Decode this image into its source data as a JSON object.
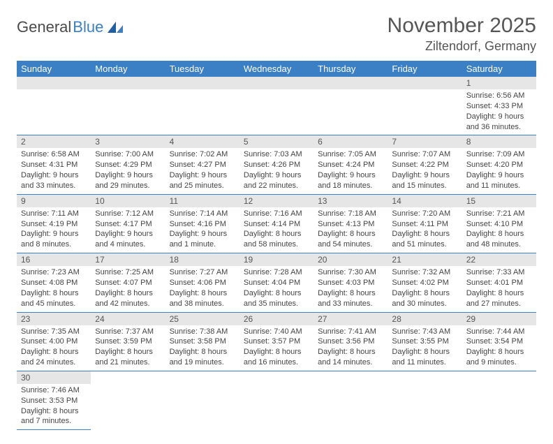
{
  "logo": {
    "part1": "General",
    "part2": "Blue"
  },
  "title": "November 2025",
  "location": "Ziltendorf, Germany",
  "colors": {
    "header_bg": "#3b7fc4",
    "header_text": "#ffffff",
    "daynum_bg": "#e6e6e6",
    "border": "#3b7fc4",
    "text": "#444444",
    "background": "#ffffff"
  },
  "day_headers": [
    "Sunday",
    "Monday",
    "Tuesday",
    "Wednesday",
    "Thursday",
    "Friday",
    "Saturday"
  ],
  "weeks": [
    [
      null,
      null,
      null,
      null,
      null,
      null,
      {
        "n": "1",
        "sr": "Sunrise: 6:56 AM",
        "ss": "Sunset: 4:33 PM",
        "dl": "Daylight: 9 hours and 36 minutes."
      }
    ],
    [
      {
        "n": "2",
        "sr": "Sunrise: 6:58 AM",
        "ss": "Sunset: 4:31 PM",
        "dl": "Daylight: 9 hours and 33 minutes."
      },
      {
        "n": "3",
        "sr": "Sunrise: 7:00 AM",
        "ss": "Sunset: 4:29 PM",
        "dl": "Daylight: 9 hours and 29 minutes."
      },
      {
        "n": "4",
        "sr": "Sunrise: 7:02 AM",
        "ss": "Sunset: 4:27 PM",
        "dl": "Daylight: 9 hours and 25 minutes."
      },
      {
        "n": "5",
        "sr": "Sunrise: 7:03 AM",
        "ss": "Sunset: 4:26 PM",
        "dl": "Daylight: 9 hours and 22 minutes."
      },
      {
        "n": "6",
        "sr": "Sunrise: 7:05 AM",
        "ss": "Sunset: 4:24 PM",
        "dl": "Daylight: 9 hours and 18 minutes."
      },
      {
        "n": "7",
        "sr": "Sunrise: 7:07 AM",
        "ss": "Sunset: 4:22 PM",
        "dl": "Daylight: 9 hours and 15 minutes."
      },
      {
        "n": "8",
        "sr": "Sunrise: 7:09 AM",
        "ss": "Sunset: 4:20 PM",
        "dl": "Daylight: 9 hours and 11 minutes."
      }
    ],
    [
      {
        "n": "9",
        "sr": "Sunrise: 7:11 AM",
        "ss": "Sunset: 4:19 PM",
        "dl": "Daylight: 9 hours and 8 minutes."
      },
      {
        "n": "10",
        "sr": "Sunrise: 7:12 AM",
        "ss": "Sunset: 4:17 PM",
        "dl": "Daylight: 9 hours and 4 minutes."
      },
      {
        "n": "11",
        "sr": "Sunrise: 7:14 AM",
        "ss": "Sunset: 4:16 PM",
        "dl": "Daylight: 9 hours and 1 minute."
      },
      {
        "n": "12",
        "sr": "Sunrise: 7:16 AM",
        "ss": "Sunset: 4:14 PM",
        "dl": "Daylight: 8 hours and 58 minutes."
      },
      {
        "n": "13",
        "sr": "Sunrise: 7:18 AM",
        "ss": "Sunset: 4:13 PM",
        "dl": "Daylight: 8 hours and 54 minutes."
      },
      {
        "n": "14",
        "sr": "Sunrise: 7:20 AM",
        "ss": "Sunset: 4:11 PM",
        "dl": "Daylight: 8 hours and 51 minutes."
      },
      {
        "n": "15",
        "sr": "Sunrise: 7:21 AM",
        "ss": "Sunset: 4:10 PM",
        "dl": "Daylight: 8 hours and 48 minutes."
      }
    ],
    [
      {
        "n": "16",
        "sr": "Sunrise: 7:23 AM",
        "ss": "Sunset: 4:08 PM",
        "dl": "Daylight: 8 hours and 45 minutes."
      },
      {
        "n": "17",
        "sr": "Sunrise: 7:25 AM",
        "ss": "Sunset: 4:07 PM",
        "dl": "Daylight: 8 hours and 42 minutes."
      },
      {
        "n": "18",
        "sr": "Sunrise: 7:27 AM",
        "ss": "Sunset: 4:06 PM",
        "dl": "Daylight: 8 hours and 38 minutes."
      },
      {
        "n": "19",
        "sr": "Sunrise: 7:28 AM",
        "ss": "Sunset: 4:04 PM",
        "dl": "Daylight: 8 hours and 35 minutes."
      },
      {
        "n": "20",
        "sr": "Sunrise: 7:30 AM",
        "ss": "Sunset: 4:03 PM",
        "dl": "Daylight: 8 hours and 33 minutes."
      },
      {
        "n": "21",
        "sr": "Sunrise: 7:32 AM",
        "ss": "Sunset: 4:02 PM",
        "dl": "Daylight: 8 hours and 30 minutes."
      },
      {
        "n": "22",
        "sr": "Sunrise: 7:33 AM",
        "ss": "Sunset: 4:01 PM",
        "dl": "Daylight: 8 hours and 27 minutes."
      }
    ],
    [
      {
        "n": "23",
        "sr": "Sunrise: 7:35 AM",
        "ss": "Sunset: 4:00 PM",
        "dl": "Daylight: 8 hours and 24 minutes."
      },
      {
        "n": "24",
        "sr": "Sunrise: 7:37 AM",
        "ss": "Sunset: 3:59 PM",
        "dl": "Daylight: 8 hours and 21 minutes."
      },
      {
        "n": "25",
        "sr": "Sunrise: 7:38 AM",
        "ss": "Sunset: 3:58 PM",
        "dl": "Daylight: 8 hours and 19 minutes."
      },
      {
        "n": "26",
        "sr": "Sunrise: 7:40 AM",
        "ss": "Sunset: 3:57 PM",
        "dl": "Daylight: 8 hours and 16 minutes."
      },
      {
        "n": "27",
        "sr": "Sunrise: 7:41 AM",
        "ss": "Sunset: 3:56 PM",
        "dl": "Daylight: 8 hours and 14 minutes."
      },
      {
        "n": "28",
        "sr": "Sunrise: 7:43 AM",
        "ss": "Sunset: 3:55 PM",
        "dl": "Daylight: 8 hours and 11 minutes."
      },
      {
        "n": "29",
        "sr": "Sunrise: 7:44 AM",
        "ss": "Sunset: 3:54 PM",
        "dl": "Daylight: 8 hours and 9 minutes."
      }
    ],
    [
      {
        "n": "30",
        "sr": "Sunrise: 7:46 AM",
        "ss": "Sunset: 3:53 PM",
        "dl": "Daylight: 8 hours and 7 minutes."
      },
      null,
      null,
      null,
      null,
      null,
      null
    ]
  ]
}
